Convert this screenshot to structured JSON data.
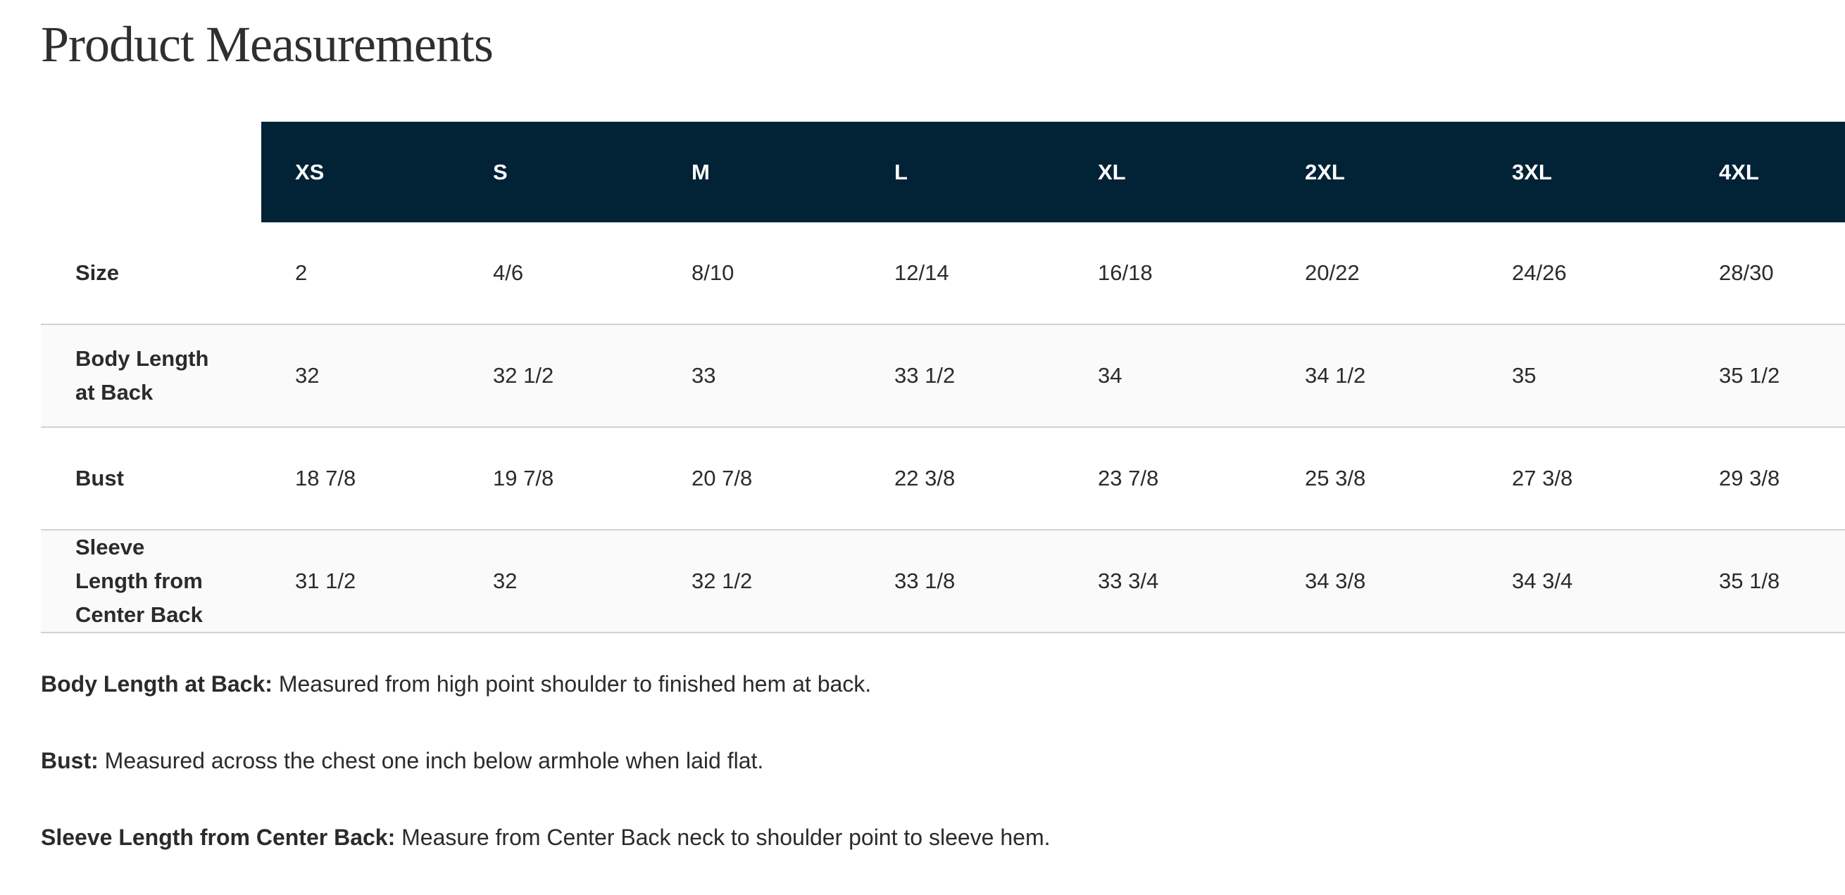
{
  "page_title": "Product Measurements",
  "colors": {
    "header_bg": "#022236",
    "header_text": "#ffffff",
    "alt_row_bg": "#fafafa"
  },
  "table": {
    "sizes": [
      "XS",
      "S",
      "M",
      "L",
      "XL",
      "2XL",
      "3XL",
      "4XL"
    ],
    "rows": [
      {
        "label_lines": [
          "Size"
        ],
        "values": [
          "2",
          "4/6",
          "8/10",
          "12/14",
          "16/18",
          "20/22",
          "24/26",
          "28/30"
        ]
      },
      {
        "label_lines": [
          "Body Length",
          "at Back"
        ],
        "values": [
          "32",
          "32 1/2",
          "33",
          "33 1/2",
          "34",
          "34 1/2",
          "35",
          "35 1/2"
        ]
      },
      {
        "label_lines": [
          "Bust"
        ],
        "values": [
          "18 7/8",
          "19 7/8",
          "20 7/8",
          "22 3/8",
          "23 7/8",
          "25 3/8",
          "27 3/8",
          "29 3/8"
        ]
      },
      {
        "label_lines": [
          "Sleeve",
          "Length from",
          "Center Back"
        ],
        "values": [
          "31 1/2",
          "32",
          "32 1/2",
          "33 1/8",
          "33 3/4",
          "34 3/8",
          "34 3/4",
          "35 1/8"
        ]
      }
    ]
  },
  "notes": [
    {
      "term": "Body Length at Back:",
      "text": " Measured from high point shoulder to finished hem at back."
    },
    {
      "term": "Bust:",
      "text": " Measured across the chest one inch below armhole when laid flat."
    },
    {
      "term": "Sleeve Length from Center Back:",
      "text": " Measure from Center Back neck to shoulder point to sleeve hem."
    }
  ]
}
